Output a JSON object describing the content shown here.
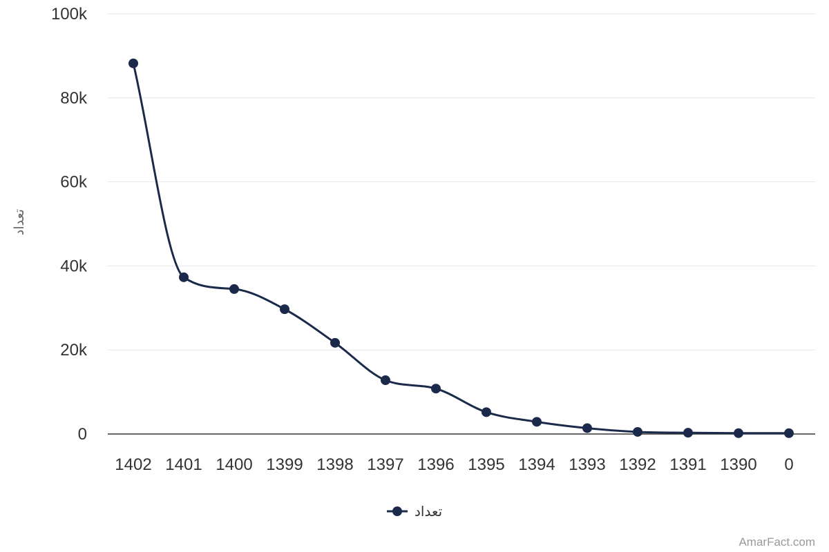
{
  "chart_data": {
    "type": "line",
    "title": "",
    "xlabel": "",
    "ylabel": "تعداد",
    "categories": [
      "1402",
      "1401",
      "1400",
      "1399",
      "1398",
      "1397",
      "1396",
      "1395",
      "1394",
      "1393",
      "1392",
      "1391",
      "1390",
      "0"
    ],
    "series": [
      {
        "name": "تعداد",
        "color": "#1b2a4a",
        "values": [
          88200,
          37300,
          34500,
          29700,
          21700,
          12800,
          10800,
          5200,
          2900,
          1400,
          500,
          300,
          200,
          200
        ]
      }
    ],
    "ylim": [
      0,
      100000
    ],
    "y_ticks": [
      {
        "value": 0,
        "label": "0"
      },
      {
        "value": 20000,
        "label": "20k"
      },
      {
        "value": 40000,
        "label": "40k"
      },
      {
        "value": 60000,
        "label": "60k"
      },
      {
        "value": 80000,
        "label": "80k"
      },
      {
        "value": 100000,
        "label": "100k"
      }
    ],
    "grid": true,
    "smooth": true,
    "legend": {
      "position": "bottom-center",
      "label": "تعداد"
    }
  },
  "credit": "AmarFact.com",
  "colors": {
    "line": "#1b2a4a",
    "grid": "#e6e6e6",
    "axis": "#333333"
  }
}
